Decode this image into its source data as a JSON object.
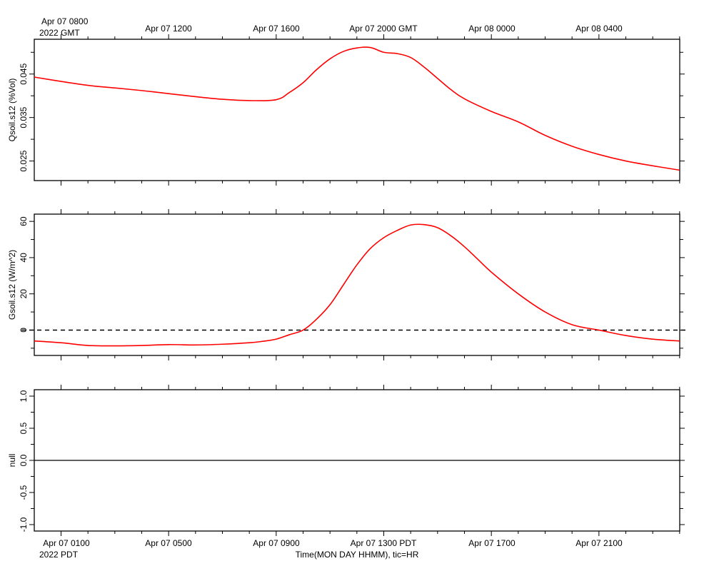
{
  "colors": {
    "series": "#ff0000",
    "axis": "#000000",
    "background": "#ffffff"
  },
  "top_time_axis": {
    "first_label_line1": "Apr 07 0800",
    "first_label_line2": "2022 GMT",
    "labels": [
      "Apr 07 1200",
      "Apr 07 1600",
      "Apr 07 2000 GMT",
      "Apr 08 0000",
      "Apr 08 0400"
    ]
  },
  "bottom_time_axis": {
    "labels": [
      "Apr 07 0100",
      "Apr 07 0500",
      "Apr 07 0900",
      "Apr 07 1300 PDT",
      "Apr 07 1700",
      "Apr 07 2100"
    ],
    "year_label": "2022 PDT",
    "title": "Time(MON DAY HHMM), tic=HR"
  },
  "chart_data": [
    {
      "type": "line",
      "ylabel": "Qsoil.s12 (%Vol)",
      "ylim": [
        0.0205,
        0.053
      ],
      "yticks": [
        0.025,
        0.035,
        0.045
      ],
      "ytick_labels": [
        "0.025",
        "0.035",
        "0.045"
      ],
      "xlim": [
        0,
        24
      ],
      "x_unit": "hours since Apr 07 0000 PDT",
      "series": [
        {
          "color": "#ff0000",
          "x": [
            0,
            1,
            2,
            3,
            4,
            5,
            6,
            7,
            8,
            9,
            9.5,
            10,
            10.5,
            11,
            11.5,
            12,
            12.5,
            13,
            13.5,
            14,
            14.5,
            15,
            15.5,
            16,
            17,
            18,
            19,
            20,
            21,
            22,
            23,
            24
          ],
          "y": [
            0.0443,
            0.0433,
            0.0424,
            0.0418,
            0.0412,
            0.0405,
            0.0398,
            0.0392,
            0.0389,
            0.0391,
            0.0408,
            0.043,
            0.046,
            0.0485,
            0.0502,
            0.051,
            0.0511,
            0.05,
            0.0497,
            0.0488,
            0.0466,
            0.044,
            0.0414,
            0.0393,
            0.0364,
            0.034,
            0.0309,
            0.0284,
            0.0265,
            0.025,
            0.0239,
            0.0229
          ]
        }
      ]
    },
    {
      "type": "line",
      "ylabel": "Gsoil.s12 (W/m^2)",
      "ylim": [
        -14,
        64
      ],
      "yticks": [
        0,
        20,
        40,
        60
      ],
      "ytick_labels": [
        "0",
        "20",
        "40",
        "60"
      ],
      "xlim": [
        0,
        24
      ],
      "x_unit": "hours since Apr 07 0000 PDT",
      "zero_line": true,
      "series": [
        {
          "color": "#ff0000",
          "x": [
            0,
            1,
            2,
            3,
            4,
            5,
            6,
            7,
            8,
            8.5,
            9,
            9.5,
            10,
            10.5,
            11,
            11.5,
            12,
            12.5,
            13,
            13.5,
            14,
            14.5,
            15,
            15.5,
            16,
            16.5,
            17,
            18,
            19,
            20,
            21,
            22,
            23,
            24
          ],
          "y": [
            -6,
            -7,
            -8.5,
            -8.7,
            -8.5,
            -8,
            -8.2,
            -7.8,
            -7,
            -6.2,
            -5,
            -2.5,
            0,
            6,
            14,
            25,
            36,
            45,
            51,
            55,
            58,
            58.2,
            56.5,
            52,
            46,
            39,
            32,
            20,
            10,
            3,
            0,
            -3,
            -5,
            -6
          ]
        }
      ]
    },
    {
      "type": "line",
      "ylabel": "null",
      "ylim": [
        -1.1,
        1.1
      ],
      "yticks": [
        -1.0,
        -0.5,
        0.0,
        0.5,
        1.0
      ],
      "ytick_labels": [
        "-1.0",
        "-0.5",
        "0.0",
        "0.5",
        "1.0"
      ],
      "xlim": [
        0,
        24
      ],
      "x_unit": "hours since Apr 07 0000 PDT",
      "zero_line": true,
      "series": []
    }
  ]
}
